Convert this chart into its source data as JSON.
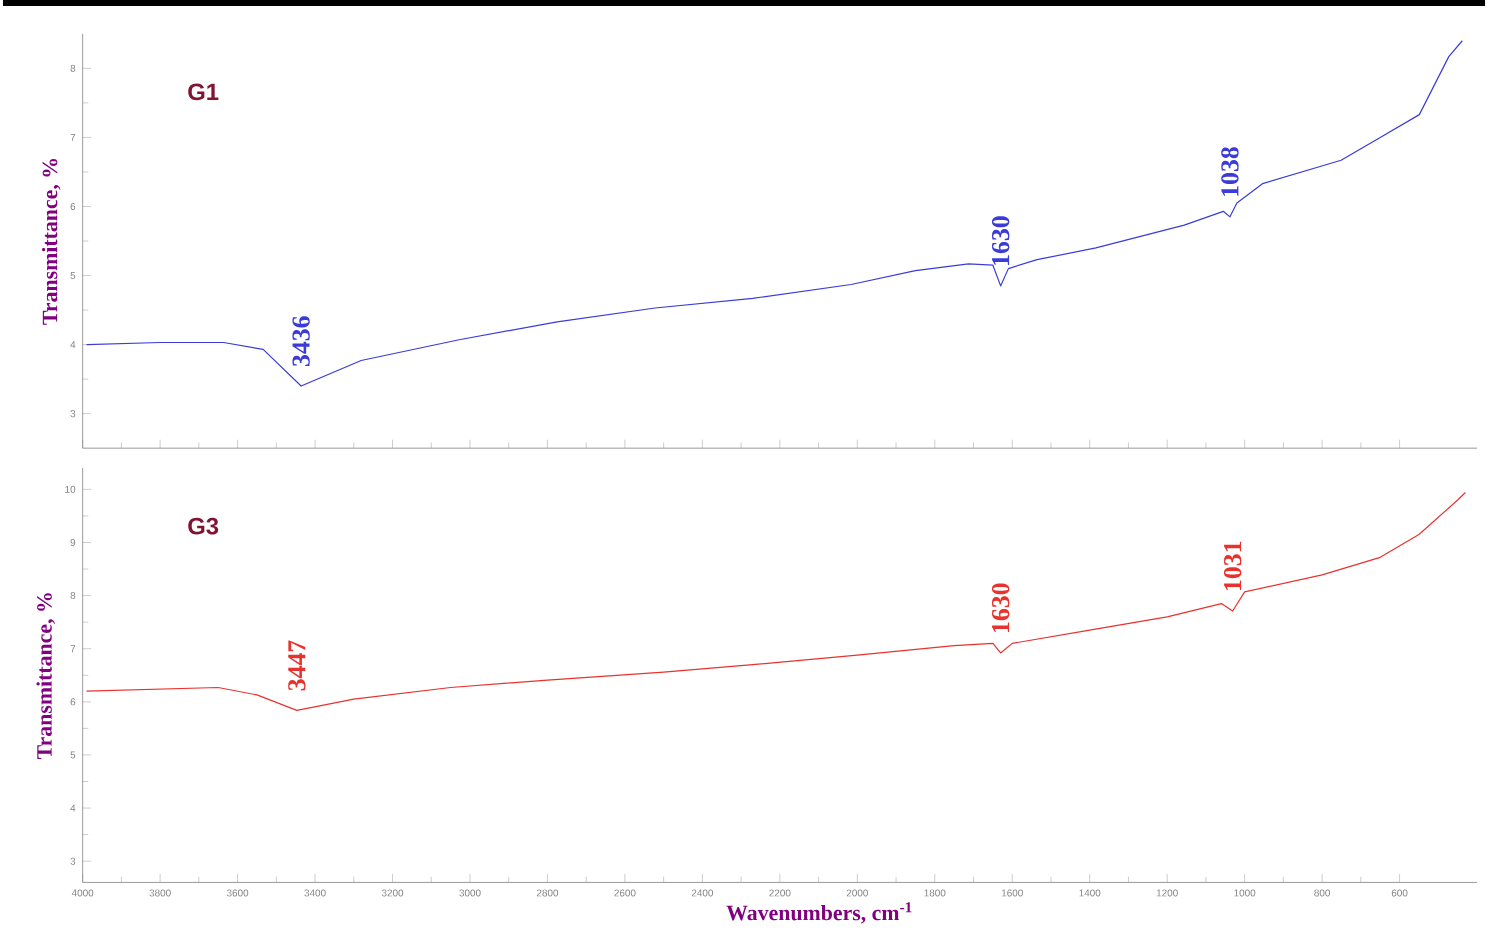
{
  "chart_data": [
    {
      "type": "line",
      "ylabel": "Transmittance, %",
      "xlim": [
        4000,
        400
      ],
      "ylim": [
        2.5,
        8.5
      ],
      "xticks": [
        4000,
        3800,
        3600,
        3400,
        3200,
        3000,
        2800,
        2600,
        2400,
        2200,
        2000,
        1800,
        1600,
        1400,
        1200,
        1000,
        800,
        600
      ],
      "yticks": [
        3,
        4,
        5,
        6,
        7,
        8
      ],
      "tick_labels": "y",
      "grid": false,
      "legend": false,
      "series": [
        {
          "name": "G1",
          "color": "#3b3bd9",
          "x": [
            3990,
            3800,
            3636,
            3534,
            3436,
            3281,
            3028,
            2775,
            2522,
            2270,
            2016,
            1850,
            1713,
            1650,
            1630,
            1610,
            1536,
            1384,
            1156,
            1055,
            1038,
            1020,
            954,
            751,
            650,
            549,
            473,
            438
          ],
          "values": [
            4.0,
            4.03,
            4.03,
            3.93,
            3.4,
            3.77,
            4.07,
            4.33,
            4.53,
            4.67,
            4.87,
            5.07,
            5.17,
            5.15,
            4.85,
            5.1,
            5.23,
            5.4,
            5.73,
            5.93,
            5.85,
            6.05,
            6.33,
            6.67,
            7.0,
            7.33,
            8.17,
            8.4
          ]
        }
      ],
      "annotations": [
        {
          "text": "3436",
          "x": 3436,
          "y": 3.4
        },
        {
          "text": "1630",
          "x": 1630,
          "y": 4.85
        },
        {
          "text": "1038",
          "x": 1038,
          "y": 5.85
        }
      ]
    },
    {
      "type": "line",
      "xlabel": "Wavenumbers, cm$^{-1}$",
      "ylabel": "Transmittance, %",
      "xlim": [
        4000,
        400
      ],
      "ylim": [
        2.6,
        10.4
      ],
      "xticks": [
        4000,
        3800,
        3600,
        3400,
        3200,
        3000,
        2800,
        2600,
        2400,
        2200,
        2000,
        1800,
        1600,
        1400,
        1200,
        1000,
        800,
        600
      ],
      "yticks": [
        3,
        4,
        5,
        6,
        7,
        8,
        9,
        10
      ],
      "grid": false,
      "legend": false,
      "series": [
        {
          "name": "G3",
          "color": "#e8322e",
          "x": [
            3990,
            3650,
            3550,
            3447,
            3300,
            3050,
            2800,
            2500,
            2270,
            2000,
            1750,
            1650,
            1630,
            1600,
            1400,
            1200,
            1060,
            1031,
            1000,
            800,
            650,
            550,
            450,
            430
          ],
          "values": [
            6.2,
            6.27,
            6.13,
            5.84,
            6.05,
            6.27,
            6.41,
            6.56,
            6.7,
            6.88,
            7.06,
            7.1,
            6.92,
            7.1,
            7.35,
            7.6,
            7.85,
            7.71,
            8.07,
            8.39,
            8.72,
            9.15,
            9.8,
            9.94
          ]
        }
      ],
      "annotations": [
        {
          "text": "3447",
          "x": 3447,
          "y": 5.84
        },
        {
          "text": "1630",
          "x": 1630,
          "y": 6.92
        },
        {
          "text": "1031",
          "x": 1031,
          "y": 7.71
        }
      ]
    }
  ]
}
